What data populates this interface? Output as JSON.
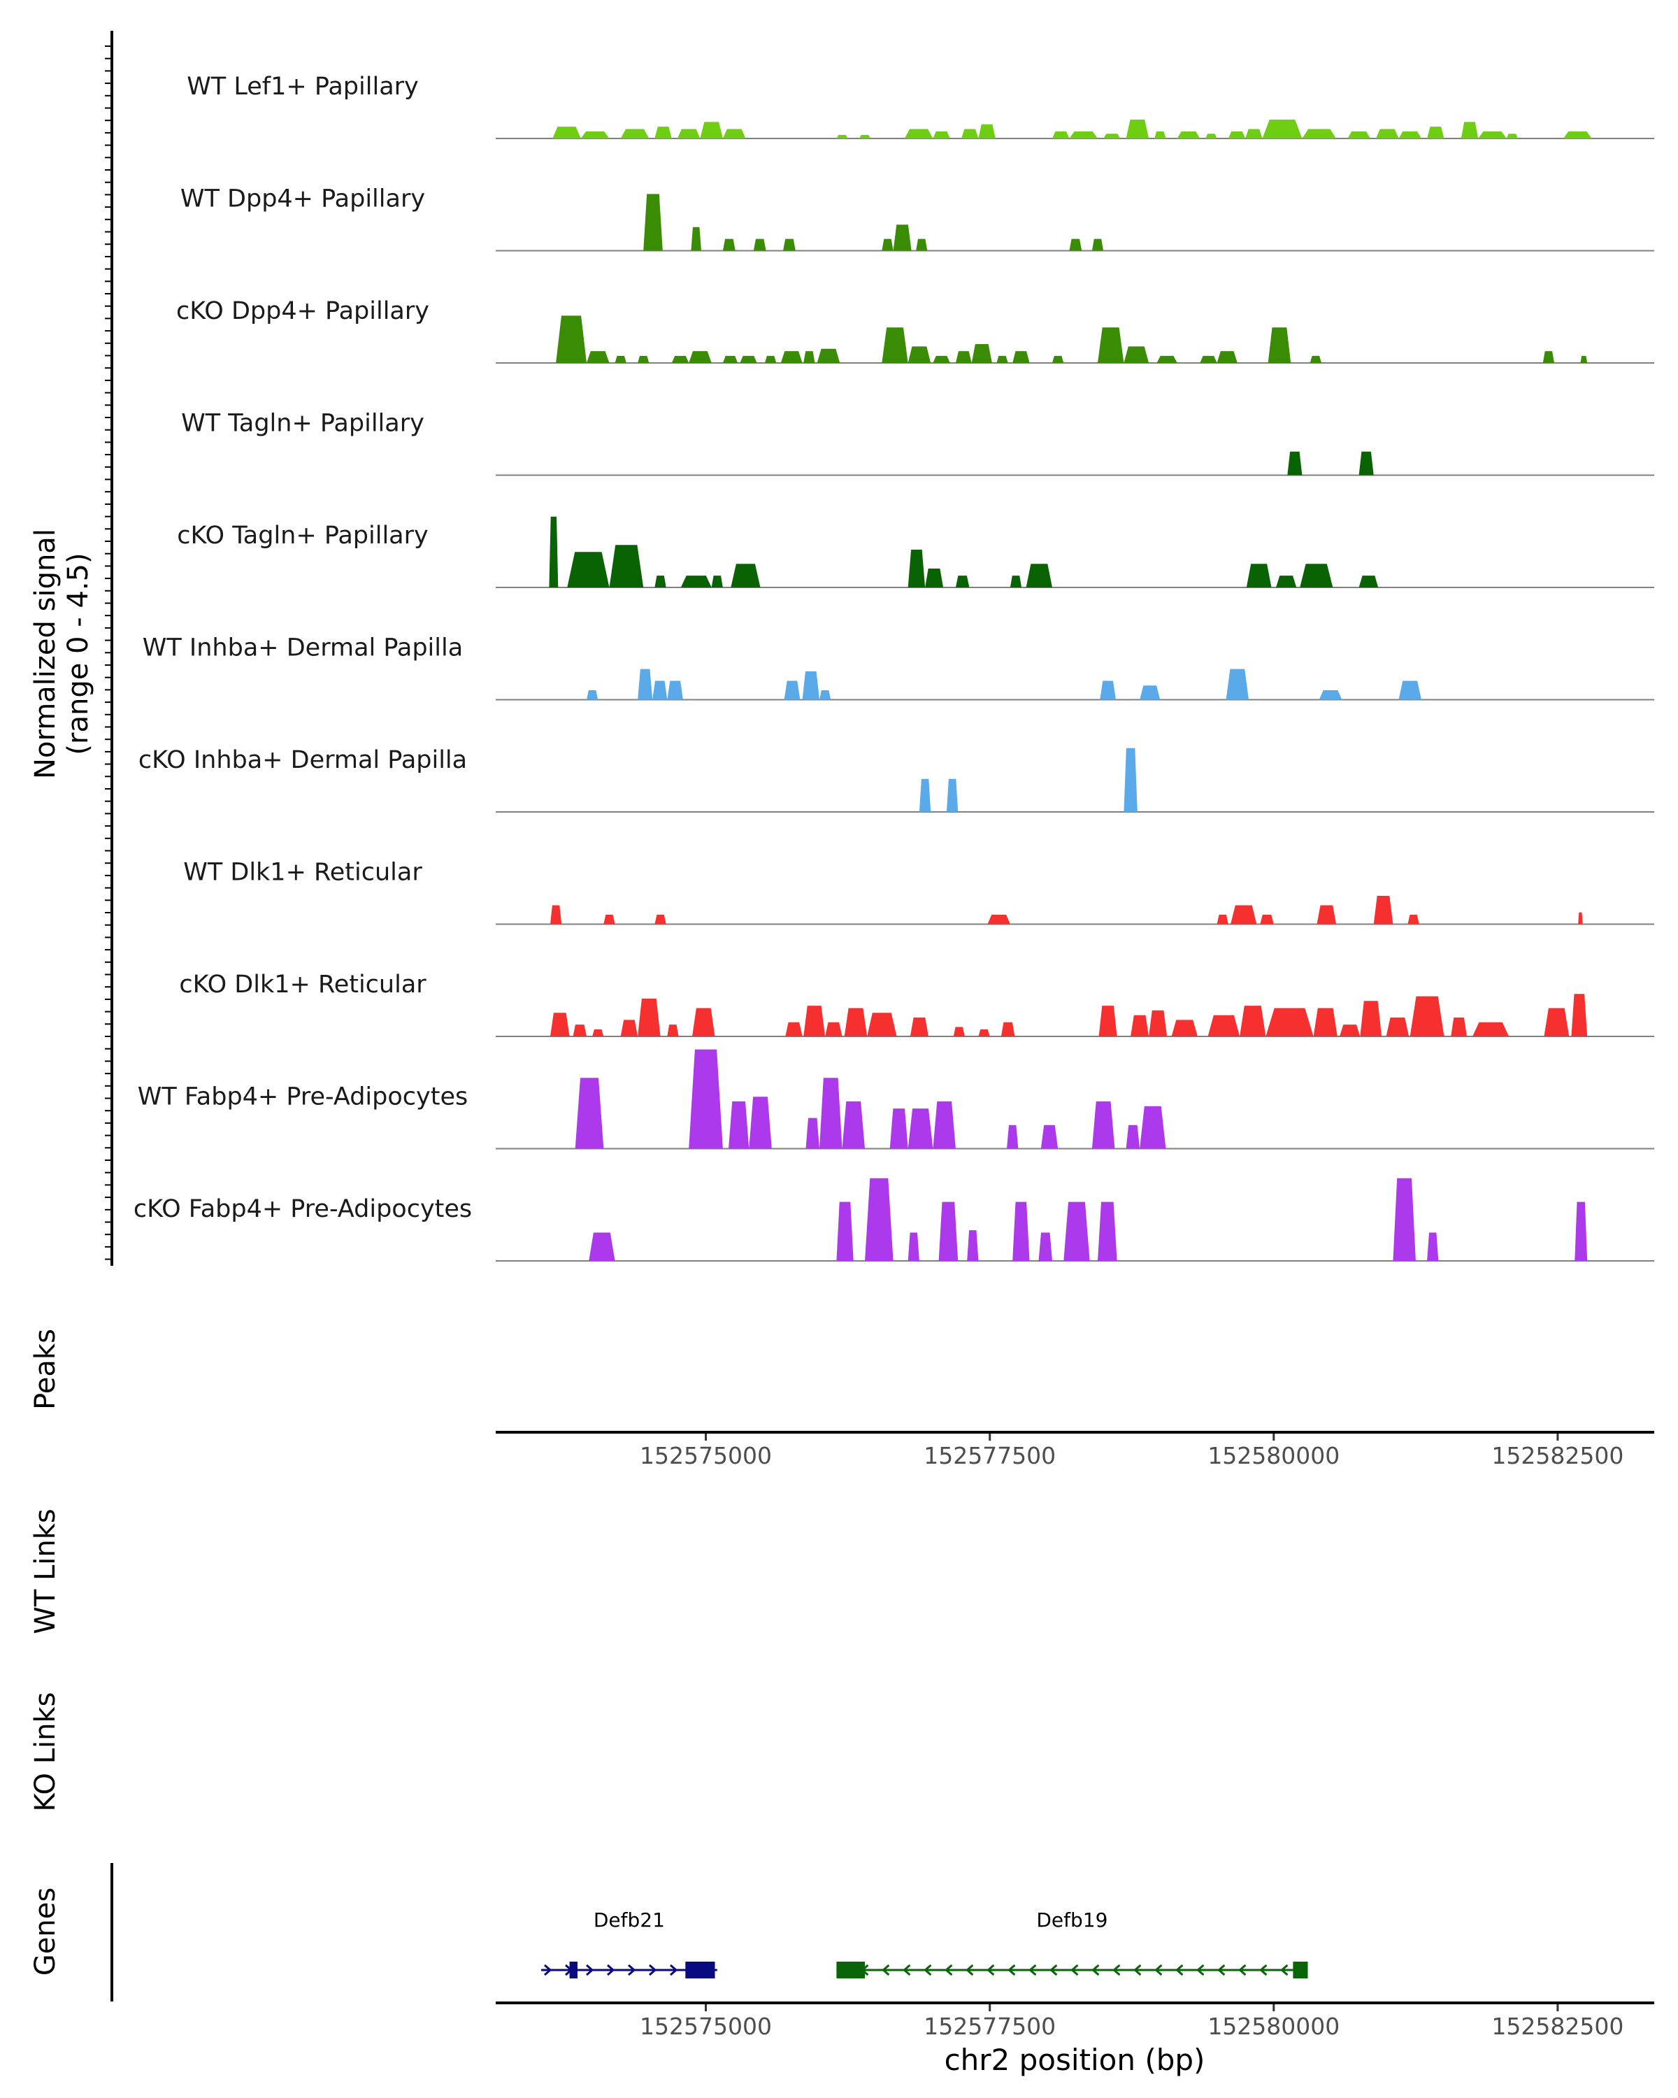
{
  "chart_data": {
    "type": "area",
    "title": "",
    "chromosome": "chr2",
    "xlabel": "chr2 position (bp)",
    "ylabel_line1": "Normalized signal",
    "ylabel_line2": "(range 0 - 4.5)",
    "ylim": [
      0,
      4.5
    ],
    "xlim": [
      152573150,
      152583350
    ],
    "x_ticks": [
      152575000,
      152577500,
      152580000,
      152582500
    ],
    "x_tick_labels": [
      "152575000",
      "152577500",
      "152580000",
      "152582500"
    ],
    "tracks": [
      {
        "name": "WT Lef1+ Papillary",
        "color": "#6DCE12",
        "peaks": [
          [
            152573650,
            152573900,
            0.5
          ],
          [
            152573900,
            152574150,
            0.3
          ],
          [
            152574250,
            152574500,
            0.4
          ],
          [
            152574550,
            152574700,
            0.5
          ],
          [
            152574750,
            152574950,
            0.4
          ],
          [
            152574950,
            152575150,
            0.7
          ],
          [
            152575150,
            152575350,
            0.4
          ],
          [
            152576150,
            152576250,
            0.15
          ],
          [
            152576350,
            152576450,
            0.15
          ],
          [
            152576750,
            152577000,
            0.4
          ],
          [
            152577000,
            152577150,
            0.3
          ],
          [
            152577250,
            152577400,
            0.4
          ],
          [
            152577400,
            152577550,
            0.6
          ],
          [
            152578050,
            152578200,
            0.3
          ],
          [
            152578200,
            152578450,
            0.3
          ],
          [
            152578500,
            152578650,
            0.2
          ],
          [
            152578700,
            152578900,
            0.8
          ],
          [
            152578950,
            152579050,
            0.3
          ],
          [
            152579150,
            152579350,
            0.3
          ],
          [
            152579400,
            152579500,
            0.2
          ],
          [
            152579600,
            152579750,
            0.3
          ],
          [
            152579750,
            152579900,
            0.4
          ],
          [
            152579900,
            152580250,
            0.8
          ],
          [
            152580250,
            152580550,
            0.4
          ],
          [
            152580650,
            152580850,
            0.3
          ],
          [
            152580900,
            152581100,
            0.4
          ],
          [
            152581100,
            152581300,
            0.3
          ],
          [
            152581350,
            152581500,
            0.5
          ],
          [
            152581650,
            152581800,
            0.7
          ],
          [
            152581800,
            152582050,
            0.3
          ],
          [
            152582050,
            152582150,
            0.2
          ],
          [
            152582550,
            152582800,
            0.3
          ]
        ]
      },
      {
        "name": "WT Dpp4+ Papillary",
        "color": "#3A8C04",
        "peaks": [
          [
            152574450,
            152574620,
            2.4
          ],
          [
            152574870,
            152574960,
            1.0
          ],
          [
            152575150,
            152575260,
            0.5
          ],
          [
            152575420,
            152575530,
            0.5
          ],
          [
            152575680,
            152575790,
            0.5
          ],
          [
            152576550,
            152576650,
            0.5
          ],
          [
            152576650,
            152576810,
            1.1
          ],
          [
            152576850,
            152576950,
            0.5
          ],
          [
            152578200,
            152578310,
            0.5
          ],
          [
            152578400,
            152578500,
            0.5
          ]
        ]
      },
      {
        "name": "cKO Dpp4+ Papillary",
        "color": "#3A8C04",
        "peaks": [
          [
            152573680,
            152573950,
            2.0
          ],
          [
            152573950,
            152574150,
            0.5
          ],
          [
            152574200,
            152574300,
            0.3
          ],
          [
            152574400,
            152574500,
            0.3
          ],
          [
            152574700,
            152574850,
            0.3
          ],
          [
            152574850,
            152575050,
            0.5
          ],
          [
            152575150,
            152575280,
            0.3
          ],
          [
            152575300,
            152575450,
            0.3
          ],
          [
            152575520,
            152575620,
            0.3
          ],
          [
            152575660,
            152575850,
            0.5
          ],
          [
            152575860,
            152575960,
            0.5
          ],
          [
            152575980,
            152576180,
            0.6
          ],
          [
            152576550,
            152576780,
            1.5
          ],
          [
            152576780,
            152576980,
            0.7
          ],
          [
            152577000,
            152577150,
            0.3
          ],
          [
            152577200,
            152577340,
            0.5
          ],
          [
            152577340,
            152577520,
            0.8
          ],
          [
            152577560,
            152577660,
            0.3
          ],
          [
            152577700,
            152577850,
            0.5
          ],
          [
            152578050,
            152578150,
            0.3
          ],
          [
            152578450,
            152578680,
            1.5
          ],
          [
            152578680,
            152578900,
            0.7
          ],
          [
            152578970,
            152579150,
            0.3
          ],
          [
            152579350,
            152579500,
            0.3
          ],
          [
            152579500,
            152579680,
            0.5
          ],
          [
            152579950,
            152580150,
            1.5
          ],
          [
            152580320,
            152580420,
            0.3
          ],
          [
            152582370,
            152582470,
            0.5
          ],
          [
            152582700,
            152582760,
            0.3
          ]
        ]
      },
      {
        "name": "WT Tagln+ Papillary",
        "color": "#096303",
        "peaks": [
          [
            152580120,
            152580250,
            1.0
          ],
          [
            152580750,
            152580880,
            1.0
          ]
        ]
      },
      {
        "name": "cKO Tagln+ Papillary",
        "color": "#096303",
        "peaks": [
          [
            152573620,
            152573700,
            3.0
          ],
          [
            152573780,
            152574150,
            1.5
          ],
          [
            152574150,
            152574450,
            1.8
          ],
          [
            152574550,
            152574650,
            0.5
          ],
          [
            152574780,
            152575050,
            0.5
          ],
          [
            152575050,
            152575150,
            0.5
          ],
          [
            152575220,
            152575480,
            1.0
          ],
          [
            152576780,
            152576930,
            1.6
          ],
          [
            152576930,
            152577090,
            0.8
          ],
          [
            152577200,
            152577320,
            0.5
          ],
          [
            152577680,
            152577780,
            0.5
          ],
          [
            152577820,
            152578050,
            1.0
          ],
          [
            152579760,
            152579980,
            1.0
          ],
          [
            152580020,
            152580200,
            0.5
          ],
          [
            152580230,
            152580520,
            1.0
          ],
          [
            152580750,
            152580920,
            0.5
          ]
        ]
      },
      {
        "name": "WT Inhba+ Dermal Papilla",
        "color": "#5AA9E9",
        "peaks": [
          [
            152573950,
            152574050,
            0.4
          ],
          [
            152574400,
            152574530,
            1.3
          ],
          [
            152574530,
            152574660,
            0.8
          ],
          [
            152574660,
            152574800,
            0.8
          ],
          [
            152575690,
            152575830,
            0.8
          ],
          [
            152575850,
            152576000,
            1.2
          ],
          [
            152576000,
            152576100,
            0.4
          ],
          [
            152578470,
            152578610,
            0.8
          ],
          [
            152578820,
            152579000,
            0.6
          ],
          [
            152579580,
            152579780,
            1.3
          ],
          [
            152580400,
            152580600,
            0.4
          ],
          [
            152581100,
            152581300,
            0.8
          ]
        ]
      },
      {
        "name": "cKO Inhba+ Dermal Papilla",
        "color": "#5AA9E9",
        "peaks": [
          [
            152576880,
            152576980,
            1.4
          ],
          [
            152577120,
            152577220,
            1.4
          ],
          [
            152578680,
            152578800,
            2.7
          ]
        ]
      },
      {
        "name": "WT Dlk1+ Reticular",
        "color": "#F5302F",
        "peaks": [
          [
            152573630,
            152573730,
            0.8
          ],
          [
            152574100,
            152574200,
            0.4
          ],
          [
            152574550,
            152574650,
            0.4
          ],
          [
            152577480,
            152577680,
            0.4
          ],
          [
            152579500,
            152579600,
            0.4
          ],
          [
            152579620,
            152579850,
            0.8
          ],
          [
            152579880,
            152580000,
            0.4
          ],
          [
            152580380,
            152580550,
            0.8
          ],
          [
            152580880,
            152581050,
            1.2
          ],
          [
            152581180,
            152581280,
            0.4
          ],
          [
            152582680,
            152582720,
            0.5
          ]
        ]
      },
      {
        "name": "cKO Dlk1+ Reticular",
        "color": "#F5302F",
        "peaks": [
          [
            152573630,
            152573800,
            1.0
          ],
          [
            152573830,
            152573950,
            0.5
          ],
          [
            152574000,
            152574100,
            0.3
          ],
          [
            152574250,
            152574400,
            0.7
          ],
          [
            152574400,
            152574600,
            1.6
          ],
          [
            152574660,
            152574760,
            0.5
          ],
          [
            152574880,
            152575080,
            1.2
          ],
          [
            152575700,
            152575850,
            0.6
          ],
          [
            152575860,
            152576050,
            1.3
          ],
          [
            152576050,
            152576200,
            0.6
          ],
          [
            152576220,
            152576420,
            1.2
          ],
          [
            152576420,
            152576680,
            1.0
          ],
          [
            152576800,
            152576960,
            0.8
          ],
          [
            152577180,
            152577280,
            0.4
          ],
          [
            152577400,
            152577500,
            0.3
          ],
          [
            152577600,
            152577720,
            0.6
          ],
          [
            152578460,
            152578620,
            1.3
          ],
          [
            152578740,
            152578900,
            0.9
          ],
          [
            152578900,
            152579060,
            1.1
          ],
          [
            152579100,
            152579330,
            0.7
          ],
          [
            152579420,
            152579700,
            0.9
          ],
          [
            152579700,
            152579930,
            1.3
          ],
          [
            152579930,
            152580350,
            1.2
          ],
          [
            152580350,
            152580560,
            1.2
          ],
          [
            152580580,
            152580760,
            0.5
          ],
          [
            152580760,
            152580950,
            1.5
          ],
          [
            152580990,
            152581190,
            0.8
          ],
          [
            152581200,
            152581500,
            1.7
          ],
          [
            152581560,
            152581700,
            0.8
          ],
          [
            152581750,
            152582070,
            0.6
          ],
          [
            152582380,
            152582600,
            1.2
          ],
          [
            152582620,
            152582760,
            1.8
          ]
        ]
      },
      {
        "name": "WT Fabp4+ Pre-Adipocytes",
        "color": "#AC3AEC",
        "peaks": [
          [
            152573850,
            152574100,
            3.0
          ],
          [
            152574850,
            152575150,
            4.2
          ],
          [
            152575200,
            152575380,
            2.0
          ],
          [
            152575380,
            152575580,
            2.2
          ],
          [
            152575880,
            152576000,
            1.3
          ],
          [
            152576000,
            152576200,
            3.0
          ],
          [
            152576200,
            152576400,
            2.0
          ],
          [
            152576620,
            152576780,
            1.7
          ],
          [
            152576780,
            152577000,
            1.7
          ],
          [
            152577000,
            152577200,
            2.0
          ],
          [
            152577650,
            152577750,
            1.0
          ],
          [
            152577950,
            152578100,
            1.0
          ],
          [
            152578400,
            152578600,
            2.0
          ],
          [
            152578700,
            152578820,
            1.0
          ],
          [
            152578820,
            152579050,
            1.8
          ]
        ]
      },
      {
        "name": "cKO Fabp4+ Pre-Adipocytes",
        "color": "#AC3AEC",
        "peaks": [
          [
            152573970,
            152574200,
            1.2
          ],
          [
            152576150,
            152576300,
            2.5
          ],
          [
            152576400,
            152576650,
            3.5
          ],
          [
            152576780,
            152576880,
            1.2
          ],
          [
            152577050,
            152577220,
            2.5
          ],
          [
            152577300,
            152577400,
            1.3
          ],
          [
            152577700,
            152577850,
            2.5
          ],
          [
            152577930,
            152578050,
            1.2
          ],
          [
            152578150,
            152578380,
            2.5
          ],
          [
            152578450,
            152578620,
            2.5
          ],
          [
            152581050,
            152581250,
            3.5
          ],
          [
            152581350,
            152581450,
            1.2
          ],
          [
            152582650,
            152582760,
            2.5
          ]
        ]
      }
    ],
    "peaks_track": {
      "label": "Peaks",
      "peaks": []
    },
    "links_tracks": [
      {
        "label": "WT Links",
        "links": []
      },
      {
        "label": "KO Links",
        "links": []
      }
    ],
    "genes_track": {
      "label": "Genes",
      "genes": [
        {
          "name": "Defb21",
          "strand": "+",
          "start": 152573550,
          "end": 152575100,
          "color": "#0A0A80",
          "exons": [
            [
              152573800,
              152573870
            ],
            [
              152574820,
              152575080
            ]
          ]
        },
        {
          "name": "Defb19",
          "strand": "-",
          "start": 152576150,
          "end": 152580300,
          "color": "#0A6408",
          "exons": [
            [
              152576150,
              152576400
            ],
            [
              152580170,
              152580300
            ]
          ]
        }
      ]
    }
  }
}
